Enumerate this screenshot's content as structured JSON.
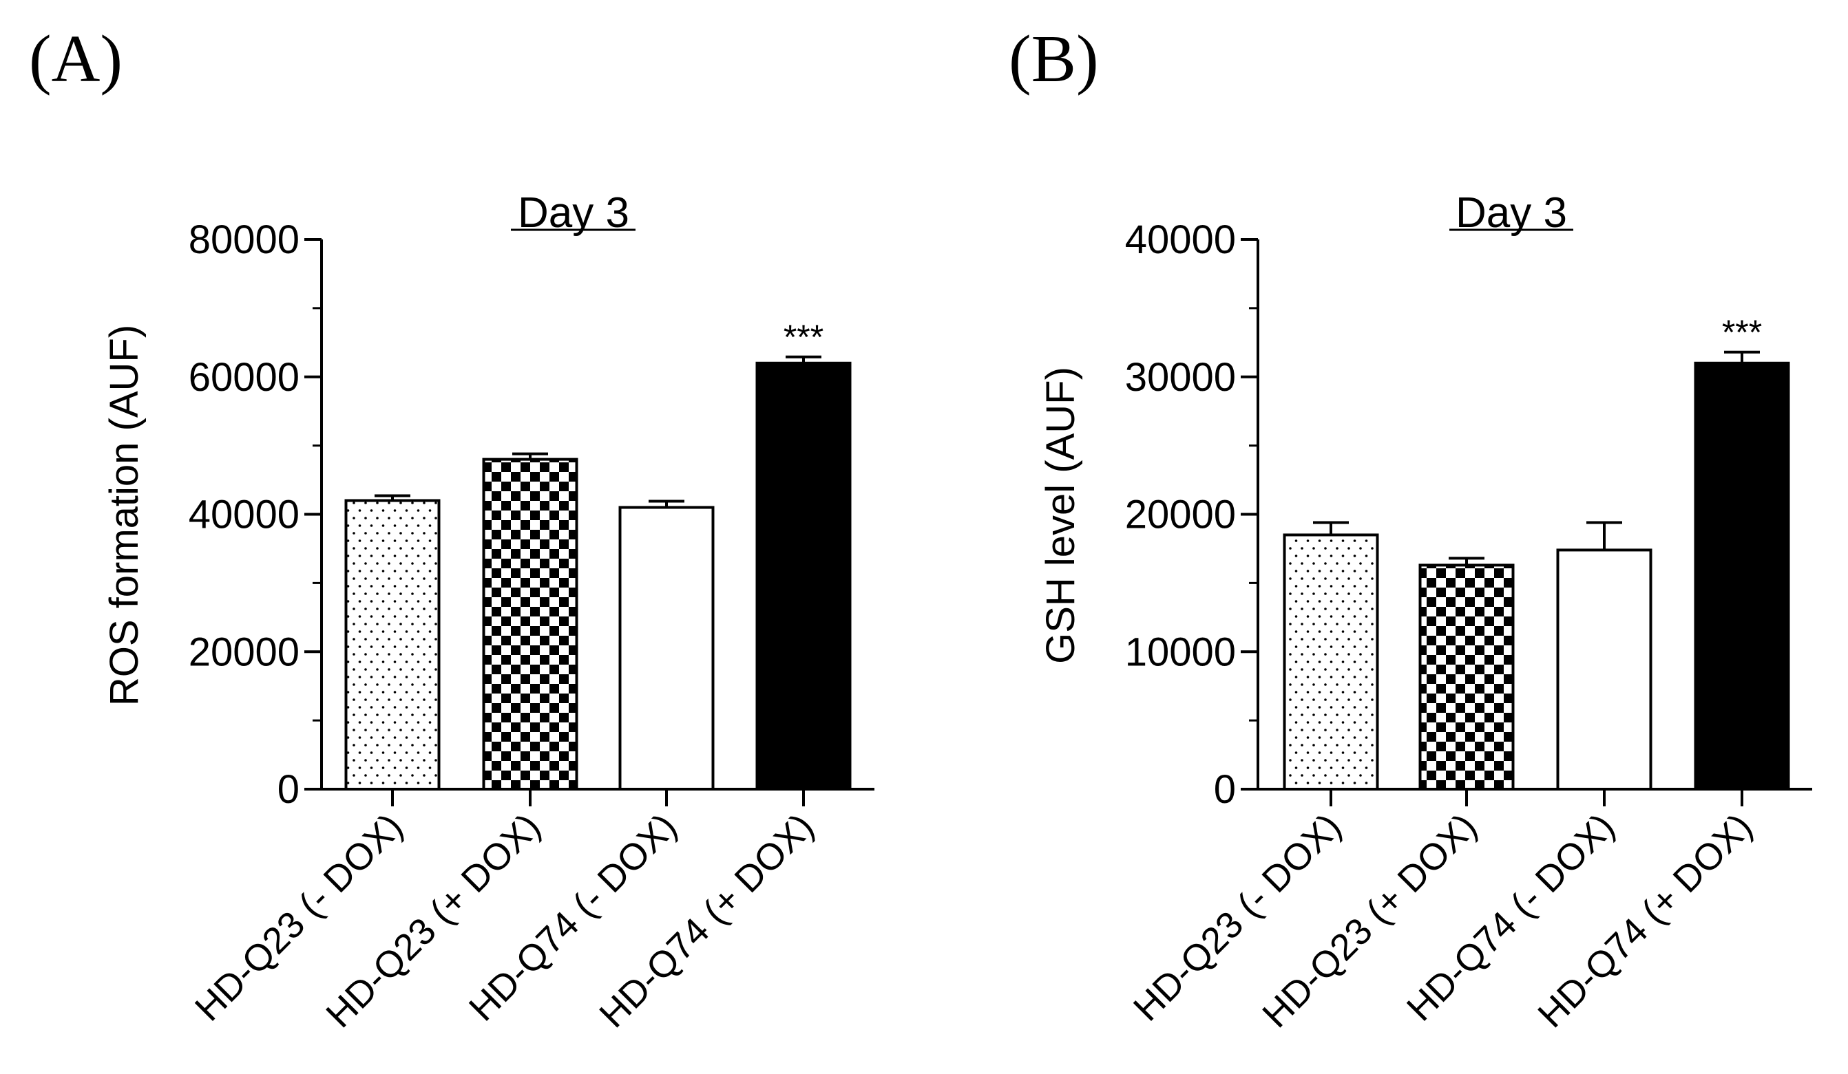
{
  "chart_data": [
    {
      "panel_label": "(A)",
      "type": "bar",
      "title": "Day 3",
      "ylabel": "ROS formation (AUF)",
      "xlabel": "",
      "ylim": [
        0,
        80000
      ],
      "yticks": [
        0,
        20000,
        40000,
        60000,
        80000
      ],
      "categories": [
        "HD-Q23 (- DOX)",
        "HD-Q23 (+ DOX)",
        "HD-Q74 (- DOX)",
        "HD-Q74 (+ DOX)"
      ],
      "values": [
        42000,
        48000,
        41000,
        62000
      ],
      "errors": [
        700,
        800,
        900,
        900
      ],
      "fills": [
        "dots",
        "checker",
        "white",
        "black"
      ],
      "annotations": [
        "",
        "",
        "",
        "***"
      ],
      "grid": false
    },
    {
      "panel_label": "(B)",
      "type": "bar",
      "title": "Day 3",
      "ylabel": "GSH level (AUF)",
      "xlabel": "",
      "ylim": [
        0,
        40000
      ],
      "yticks": [
        0,
        10000,
        20000,
        30000,
        40000
      ],
      "categories": [
        "HD-Q23 (- DOX)",
        "HD-Q23 (+ DOX)",
        "HD-Q74 (- DOX)",
        "HD-Q74 (+ DOX)"
      ],
      "values": [
        18500,
        16300,
        17400,
        31000
      ],
      "errors": [
        900,
        500,
        2000,
        800
      ],
      "fills": [
        "dots",
        "checker",
        "white",
        "black"
      ],
      "annotations": [
        "",
        "",
        "",
        "***"
      ],
      "grid": false
    }
  ],
  "colors": {
    "ink": "#000000",
    "background": "#ffffff"
  }
}
